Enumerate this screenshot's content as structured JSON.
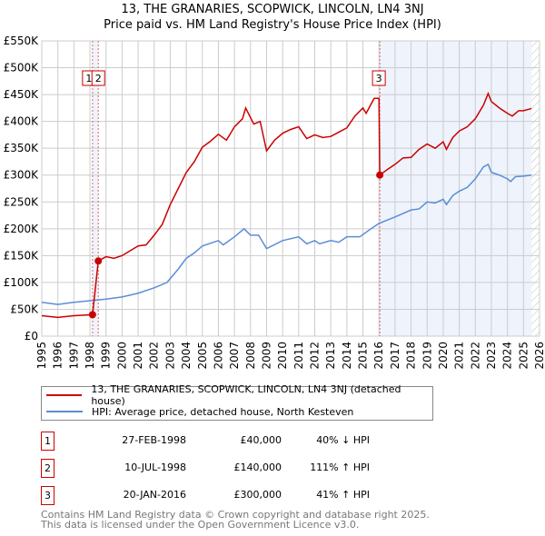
{
  "title_line1": "13, THE GRANARIES, SCOPWICK, LINCOLN, LN4 3NJ",
  "title_line2": "Price paid vs. HM Land Registry's House Price Index (HPI)",
  "colors": {
    "property": "#cc0000",
    "hpi": "#5b8dd6",
    "shade": "#eef3fc"
  },
  "chart_data": {
    "type": "line",
    "xlim": [
      1995,
      2026
    ],
    "ylim": [
      0,
      550000
    ],
    "yticks": [
      0,
      50000,
      100000,
      150000,
      200000,
      250000,
      300000,
      350000,
      400000,
      450000,
      500000,
      550000
    ],
    "ytick_labels": [
      "£0",
      "£50K",
      "£100K",
      "£150K",
      "£200K",
      "£250K",
      "£300K",
      "£350K",
      "£400K",
      "£450K",
      "£500K",
      "£550K"
    ],
    "xticks": [
      1995,
      1996,
      1997,
      1998,
      1999,
      2000,
      2001,
      2002,
      2003,
      2004,
      2005,
      2006,
      2007,
      2008,
      2009,
      2010,
      2011,
      2012,
      2013,
      2014,
      2015,
      2016,
      2017,
      2018,
      2019,
      2020,
      2021,
      2022,
      2023,
      2024,
      2025,
      2026
    ],
    "grid": true,
    "series": [
      {
        "name": "13, THE GRANARIES, SCOPWICK, LINCOLN, LN4 3NJ (detached house)",
        "color": "#cc0000",
        "x": [
          1995,
          1996,
          1997,
          1998.16,
          1998.52,
          1999,
          1999.5,
          2000,
          2001,
          2001.5,
          2002,
          2002.5,
          2003,
          2003.5,
          2004,
          2004.5,
          2005,
          2005.5,
          2006,
          2006.5,
          2007,
          2007.5,
          2007.7,
          2008.2,
          2008.6,
          2009,
          2009.5,
          2010,
          2010.5,
          2011,
          2011.5,
          2012,
          2012.5,
          2013,
          2013.5,
          2014,
          2014.5,
          2015,
          2015.2,
          2015.7,
          2016.0,
          2016.05,
          2016.5,
          2017,
          2017.5,
          2018,
          2018.5,
          2019,
          2019.5,
          2020,
          2020.2,
          2020.6,
          2021,
          2021.5,
          2022,
          2022.5,
          2022.8,
          2023,
          2023.5,
          2024,
          2024.3,
          2024.7,
          2025,
          2025.5
        ],
        "y": [
          38000,
          35000,
          38000,
          40000,
          140000,
          148000,
          145000,
          150000,
          168000,
          170000,
          188000,
          208000,
          245000,
          275000,
          305000,
          325000,
          352000,
          363000,
          376000,
          365000,
          390000,
          405000,
          425000,
          395000,
          400000,
          345000,
          365000,
          378000,
          385000,
          390000,
          368000,
          375000,
          370000,
          372000,
          380000,
          388000,
          410000,
          425000,
          415000,
          443000,
          443000,
          300000,
          310000,
          320000,
          332000,
          333000,
          348000,
          358000,
          350000,
          362000,
          348000,
          370000,
          382000,
          390000,
          405000,
          430000,
          452000,
          437000,
          425000,
          415000,
          410000,
          420000,
          420000,
          424000
        ]
      },
      {
        "name": "HPI: Average price, detached house, North Kesteven",
        "color": "#5b8dd6",
        "x": [
          1995,
          1996,
          1997,
          1998,
          1999,
          2000,
          2001,
          2002,
          2002.8,
          2003.5,
          2004,
          2004.5,
          2005,
          2006,
          2006.3,
          2007,
          2007.6,
          2008,
          2008.5,
          2009,
          2010,
          2011,
          2011.5,
          2012,
          2012.3,
          2013,
          2013.5,
          2014,
          2014.8,
          2015.5,
          2016,
          2017,
          2018,
          2018.5,
          2019,
          2019.5,
          2020,
          2020.2,
          2020.6,
          2021,
          2021.5,
          2022,
          2022.5,
          2022.8,
          2023,
          2023.5,
          2024,
          2024.2,
          2024.5,
          2025,
          2025.5
        ],
        "y": [
          63000,
          59000,
          63000,
          66000,
          69000,
          73000,
          80000,
          90000,
          100000,
          125000,
          145000,
          155000,
          168000,
          178000,
          170000,
          185000,
          200000,
          188000,
          188000,
          163000,
          178000,
          185000,
          172000,
          178000,
          172000,
          178000,
          175000,
          185000,
          185000,
          200000,
          210000,
          222000,
          235000,
          237000,
          250000,
          248000,
          255000,
          245000,
          262000,
          270000,
          277000,
          293000,
          315000,
          320000,
          305000,
          300000,
          293000,
          288000,
          297000,
          298000,
          300000
        ]
      }
    ],
    "sales": [
      {
        "label": "1",
        "x": 1998.16,
        "y": 40000
      },
      {
        "label": "2",
        "x": 1998.52,
        "y": 140000
      },
      {
        "label": "3",
        "x": 2016.05,
        "y": 300000
      }
    ],
    "shaded_ranges": [
      [
        1998.16,
        1998.52
      ],
      [
        2016.05,
        2025.5
      ]
    ],
    "hatched_from": 2025.5
  },
  "legend": {
    "property": "13, THE GRANARIES, SCOPWICK, LINCOLN, LN4 3NJ (detached house)",
    "hpi": "HPI: Average price, detached house, North Kesteven"
  },
  "transactions": [
    {
      "num": "1",
      "date": "27-FEB-1998",
      "price": "£40,000",
      "hpi": "40% ↓ HPI"
    },
    {
      "num": "2",
      "date": "10-JUL-1998",
      "price": "£140,000",
      "hpi": "111% ↑ HPI"
    },
    {
      "num": "3",
      "date": "20-JAN-2016",
      "price": "£300,000",
      "hpi": "41% ↑ HPI"
    }
  ],
  "footer": {
    "line1": "Contains HM Land Registry data © Crown copyright and database right 2025.",
    "line2": "This data is licensed under the Open Government Licence v3.0."
  }
}
